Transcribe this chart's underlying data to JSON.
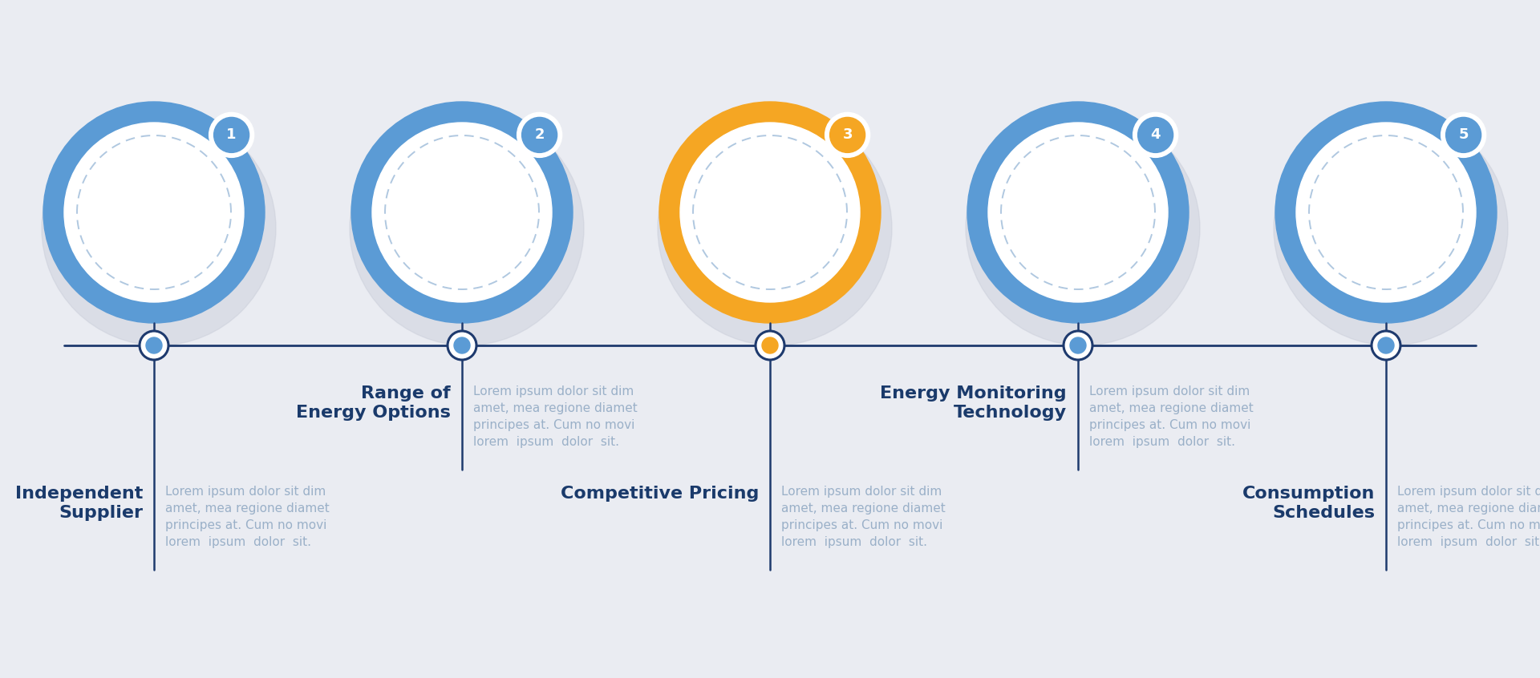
{
  "background_color": "#eaecf2",
  "title_color": "#1a3a6b",
  "desc_color": "#9ab0c8",
  "line_color": "#1e3a6e",
  "steps": [
    {
      "number": "1",
      "title": "Independent\nSupplier",
      "circle_color": "#5b9bd5",
      "accent_color": "#5b9bd5",
      "row": "bottom"
    },
    {
      "number": "2",
      "title": "Range of\nEnergy Options",
      "circle_color": "#5b9bd5",
      "accent_color": "#5b9bd5",
      "row": "top"
    },
    {
      "number": "3",
      "title": "Competitive Pricing",
      "circle_color": "#f5a623",
      "accent_color": "#f5a623",
      "row": "bottom"
    },
    {
      "number": "4",
      "title": "Energy Monitoring\nTechnology",
      "circle_color": "#5b9bd5",
      "accent_color": "#5b9bd5",
      "row": "top"
    },
    {
      "number": "5",
      "title": "Consumption\nSchedules",
      "circle_color": "#5b9bd5",
      "accent_color": "#5b9bd5",
      "row": "bottom"
    }
  ],
  "lorem": "Lorem ipsum dolor sit dim\namet, mea regione diamet\nprincipes at. Cum no movi\nlorem  ipsum  dolor  sit."
}
